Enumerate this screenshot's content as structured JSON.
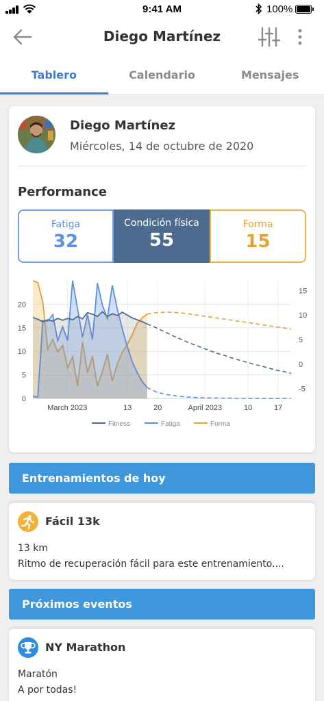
{
  "status": {
    "time": "9:41 AM",
    "battery": "100%"
  },
  "header": {
    "title": "Diego Martínez"
  },
  "tabs": [
    {
      "label": "Tablero",
      "active": true
    },
    {
      "label": "Calendario",
      "active": false
    },
    {
      "label": "Mensajes",
      "active": false
    }
  ],
  "athlete": {
    "name": "Diego Martínez",
    "date": "Miércoles, 14 de octubre de 2020"
  },
  "performance": {
    "title": "Performance",
    "metrics": [
      {
        "label": "Fatiga",
        "value": "32",
        "color": "#5a8fe3"
      },
      {
        "label": "Condición física",
        "value": "55",
        "color": "#4d6b8f"
      },
      {
        "label": "Forma",
        "value": "15",
        "color": "#e2a236"
      }
    ]
  },
  "chart_data": {
    "type": "line",
    "x_ticks": [
      "March 2023",
      "13",
      "20",
      "April 2023",
      "10",
      "17"
    ],
    "y_left_ticks": [
      "0",
      "5",
      "10",
      "15",
      "20"
    ],
    "y_right_ticks": [
      "-5",
      "0",
      "5",
      "10",
      "15"
    ],
    "ylim_left": [
      0,
      25
    ],
    "ylim_right": [
      -7,
      17
    ],
    "grid": true,
    "legend_position": "bottom",
    "series": [
      {
        "name": "Fitness",
        "axis": "left",
        "color": "#4d6b8f",
        "style": "solid then dashed (projection)",
        "x": [
          0,
          1,
          2,
          3,
          4,
          5,
          6,
          7,
          8,
          9,
          10,
          11,
          12,
          13,
          14,
          15,
          16,
          17,
          18,
          19,
          20,
          21,
          22,
          23,
          24,
          25,
          26,
          27,
          28,
          29,
          30,
          31,
          32,
          33,
          34,
          35,
          36,
          37,
          38,
          39,
          40,
          41,
          42,
          43,
          44,
          45,
          46,
          47,
          48,
          49,
          50,
          51,
          52
        ],
        "y": [
          17.2,
          16.8,
          16.3,
          16.7,
          16.4,
          17.0,
          16.6,
          17.0,
          16.7,
          17.4,
          16.9,
          18.2,
          17.9,
          17.4,
          18.4,
          17.4,
          18.0,
          17.6,
          18.3,
          17.7,
          17.1,
          16.7,
          16.3,
          15.8,
          15.4,
          14.9,
          14.4,
          13.9,
          13.4,
          12.9,
          12.5,
          12.0,
          11.6,
          11.2,
          10.8,
          10.4,
          10.0,
          9.6,
          9.3,
          9.0,
          8.6,
          8.3,
          8.0,
          7.7,
          7.4,
          7.1,
          6.9,
          6.6,
          6.3,
          6.0,
          5.8,
          5.6,
          5.3
        ],
        "projection_from_x": 23
      },
      {
        "name": "Fatiga",
        "axis": "left",
        "color": "#5a8fe3",
        "style": "solid then dashed (projection)",
        "x": [
          0,
          1,
          2,
          3,
          4,
          5,
          6,
          7,
          8,
          9,
          10,
          11,
          12,
          13,
          14,
          15,
          16,
          17,
          18,
          19,
          20,
          21,
          22,
          23,
          25,
          27,
          29,
          31,
          33,
          35,
          37,
          39,
          41,
          43,
          45,
          47,
          49,
          51,
          52
        ],
        "y": [
          0.5,
          0.3,
          16.5,
          16.4,
          17.8,
          12.3,
          15.2,
          12.3,
          25.0,
          19.0,
          13.0,
          17.8,
          12.5,
          24.5,
          19.8,
          17.0,
          24.0,
          19.0,
          14.8,
          11.0,
          7.8,
          5.5,
          3.6,
          2.3,
          1.3,
          0.8,
          0.5,
          0.3,
          0.2,
          0.1,
          0.08,
          0.06,
          0.04,
          0.03,
          0.02,
          0.01,
          0.01,
          0.0,
          0.0
        ],
        "projection_from_x": 23
      },
      {
        "name": "Forma",
        "axis": "right",
        "color": "#e2a236",
        "style": "solid then dashed (projection)",
        "x": [
          0,
          1,
          2,
          3,
          4,
          5,
          6,
          7,
          8,
          9,
          10,
          11,
          12,
          13,
          14,
          15,
          16,
          17,
          18,
          19,
          20,
          21,
          22,
          23,
          25,
          27,
          29,
          31,
          33,
          35,
          37,
          39,
          41,
          43,
          45,
          47,
          49,
          51,
          52
        ],
        "y": [
          17.0,
          16.6,
          12.6,
          3.0,
          5.0,
          2.5,
          3.8,
          -0.8,
          1.5,
          -4.5,
          4.5,
          -1.8,
          1.6,
          -4.5,
          -1.5,
          2.0,
          -3.5,
          0.0,
          2.4,
          4.0,
          6.0,
          8.3,
          9.4,
          10.2,
          10.5,
          10.6,
          10.5,
          10.3,
          10.0,
          9.7,
          9.4,
          9.1,
          8.8,
          8.5,
          8.2,
          7.9,
          7.6,
          7.3,
          7.1
        ],
        "projection_from_x": 23
      }
    ]
  },
  "today": {
    "section_title": "Entrenamientos de hoy",
    "workout": {
      "title": "Fácil 13k",
      "distance": "13 km",
      "description": "Ritmo de recuperación fácil para este entrenamiento....",
      "icon": "running-icon"
    }
  },
  "events": {
    "section_title": "Próximos eventos",
    "event": {
      "title": "NY Marathon",
      "type": "Maratón",
      "note": "A por todas!",
      "icon": "trophy-icon"
    }
  }
}
